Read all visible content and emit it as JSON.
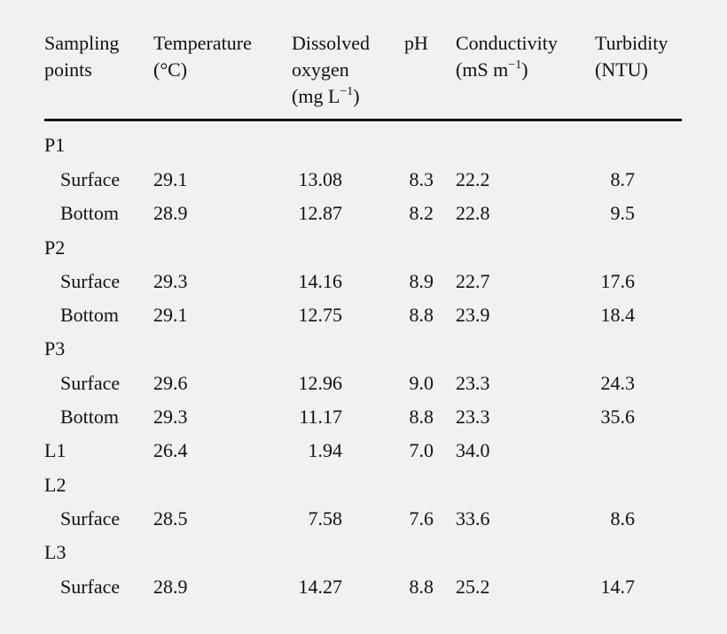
{
  "table": {
    "headers": [
      {
        "lines": [
          "Sampling",
          "points"
        ]
      },
      {
        "lines": [
          "Temperature",
          "(°C)"
        ]
      },
      {
        "lines": [
          "Dissolved",
          "oxygen",
          "(mg L"
        ],
        "unit_sup": "−1",
        "unit_close": ")"
      },
      {
        "lines": [
          "pH"
        ]
      },
      {
        "lines": [
          "Conductivity",
          "(mS m"
        ],
        "unit_sup": "−1",
        "unit_close": ")"
      },
      {
        "lines": [
          "Turbidity",
          "(NTU)"
        ]
      }
    ],
    "rows": [
      {
        "label": "P1",
        "group": true
      },
      {
        "label": "Surface",
        "temperature": "29.1",
        "dissolved_oxygen": "13.08",
        "ph": "8.3",
        "conductivity": "22.2",
        "turbidity": "8.7"
      },
      {
        "label": "Bottom",
        "temperature": "28.9",
        "dissolved_oxygen": "12.87",
        "ph": "8.2",
        "conductivity": "22.8",
        "turbidity": "9.5"
      },
      {
        "label": "P2",
        "group": true
      },
      {
        "label": "Surface",
        "temperature": "29.3",
        "dissolved_oxygen": "14.16",
        "ph": "8.9",
        "conductivity": "22.7",
        "turbidity": "17.6"
      },
      {
        "label": "Bottom",
        "temperature": "29.1",
        "dissolved_oxygen": "12.75",
        "ph": "8.8",
        "conductivity": "23.9",
        "turbidity": "18.4"
      },
      {
        "label": "P3",
        "group": true
      },
      {
        "label": "Surface",
        "temperature": "29.6",
        "dissolved_oxygen": "12.96",
        "ph": "9.0",
        "conductivity": "23.3",
        "turbidity": "24.3"
      },
      {
        "label": "Bottom",
        "temperature": "29.3",
        "dissolved_oxygen": "11.17",
        "ph": "8.8",
        "conductivity": "23.3",
        "turbidity": "35.6"
      },
      {
        "label": "L1",
        "group": true,
        "temperature": "26.4",
        "dissolved_oxygen": "1.94",
        "ph": "7.0",
        "conductivity": "34.0",
        "turbidity": ""
      },
      {
        "label": "L2",
        "group": true
      },
      {
        "label": "Surface",
        "temperature": "28.5",
        "dissolved_oxygen": "7.58",
        "ph": "7.6",
        "conductivity": "33.6",
        "turbidity": "8.6"
      },
      {
        "label": "L3",
        "group": true
      },
      {
        "label": "Surface",
        "temperature": "28.9",
        "dissolved_oxygen": "14.27",
        "ph": "8.8",
        "conductivity": "25.2",
        "turbidity": "14.7"
      }
    ]
  }
}
